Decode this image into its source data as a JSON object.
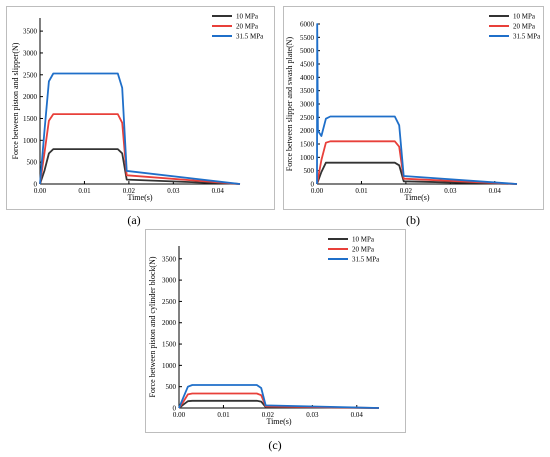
{
  "colors": {
    "series1": "#333333",
    "series2": "#e8403a",
    "series3": "#1f6fc9"
  },
  "chart_data": [
    {
      "type": "line",
      "caption": "(a)",
      "xlabel": "Time(s)",
      "ylabel": "Force between piston and slipper(N)",
      "xlim": [
        0,
        0.045
      ],
      "ylim": [
        0,
        3800
      ],
      "xticks": [
        "0.00",
        "0.01",
        "0.02",
        "0.03",
        "0.04"
      ],
      "yticks": [
        "0",
        "500",
        "1000",
        "1500",
        "2000",
        "2500",
        "3000",
        "3500"
      ],
      "legend": [
        "10 MPa",
        "20 MPa",
        "31.5 MPa"
      ],
      "legend_position": "top-right",
      "series": [
        {
          "name": "10 MPa",
          "x": [
            0,
            0.001,
            0.002,
            0.003,
            0.0175,
            0.0185,
            0.0195,
            0.045
          ],
          "y": [
            0,
            300,
            700,
            800,
            800,
            700,
            100,
            0
          ]
        },
        {
          "name": "20 MPa",
          "x": [
            0,
            0.001,
            0.002,
            0.003,
            0.0175,
            0.0185,
            0.0195,
            0.045
          ],
          "y": [
            0,
            700,
            1450,
            1600,
            1600,
            1400,
            200,
            0
          ]
        },
        {
          "name": "31.5 MPa",
          "x": [
            0,
            0.001,
            0.002,
            0.003,
            0.0175,
            0.0185,
            0.0195,
            0.045
          ],
          "y": [
            0,
            1200,
            2350,
            2530,
            2530,
            2200,
            300,
            0
          ]
        }
      ]
    },
    {
      "type": "line",
      "caption": "(b)",
      "xlabel": "Time(s)",
      "ylabel": "Force between slipper and swash plate(N)",
      "xlim": [
        0,
        0.045
      ],
      "ylim": [
        0,
        6000
      ],
      "xticks": [
        "0.00",
        "0.01",
        "0.02",
        "0.03",
        "0.04"
      ],
      "yticks": [
        "0",
        "500",
        "1000",
        "1500",
        "2000",
        "2500",
        "3000",
        "3500",
        "4000",
        "4500",
        "5000",
        "5500",
        "6000"
      ],
      "legend": [
        "10 MPa",
        "20 MPa",
        "31.5 MPa"
      ],
      "legend_position": "top-right",
      "series": [
        {
          "name": "10 MPa",
          "x": [
            0,
            0.001,
            0.002,
            0.003,
            0.0175,
            0.0185,
            0.0195,
            0.045
          ],
          "y": [
            0,
            450,
            800,
            800,
            800,
            700,
            100,
            0
          ]
        },
        {
          "name": "20 MPa",
          "x": [
            0,
            0.001,
            0.002,
            0.003,
            0.0175,
            0.0185,
            0.0195,
            0.045
          ],
          "y": [
            0,
            900,
            1550,
            1600,
            1600,
            1400,
            200,
            0
          ]
        },
        {
          "name": "31.5 MPa",
          "x": [
            0,
            5e-05,
            0.0002,
            0.001,
            0.002,
            0.003,
            0.0175,
            0.0185,
            0.0195,
            0.045
          ],
          "y": [
            0,
            6000,
            2000,
            1800,
            2450,
            2530,
            2530,
            2200,
            300,
            0
          ]
        }
      ]
    },
    {
      "type": "line",
      "caption": "(c)",
      "xlabel": "Time(s)",
      "ylabel": "Force between piston and cylinder block(N)",
      "xlim": [
        0,
        0.045
      ],
      "ylim": [
        0,
        3800
      ],
      "xticks": [
        "0.00",
        "0.01",
        "0.02",
        "0.03",
        "0.04"
      ],
      "yticks": [
        "0",
        "500",
        "1000",
        "1500",
        "2000",
        "2500",
        "3000",
        "3500"
      ],
      "legend": [
        "10 MPa",
        "20 MPa",
        "31.5 MPa"
      ],
      "legend_position": "top-right",
      "series": [
        {
          "name": "10 MPa",
          "x": [
            0,
            0.001,
            0.002,
            0.003,
            0.0175,
            0.0185,
            0.0195,
            0.045
          ],
          "y": [
            0,
            80,
            160,
            170,
            170,
            150,
            20,
            0
          ]
        },
        {
          "name": "20 MPa",
          "x": [
            0,
            0.001,
            0.002,
            0.003,
            0.0175,
            0.0185,
            0.0195,
            0.045
          ],
          "y": [
            0,
            150,
            320,
            340,
            340,
            300,
            40,
            0
          ]
        },
        {
          "name": "31.5 MPa",
          "x": [
            0,
            0.001,
            0.002,
            0.003,
            0.0175,
            0.0185,
            0.0195,
            0.045
          ],
          "y": [
            0,
            250,
            500,
            540,
            540,
            470,
            60,
            0
          ]
        }
      ]
    }
  ]
}
